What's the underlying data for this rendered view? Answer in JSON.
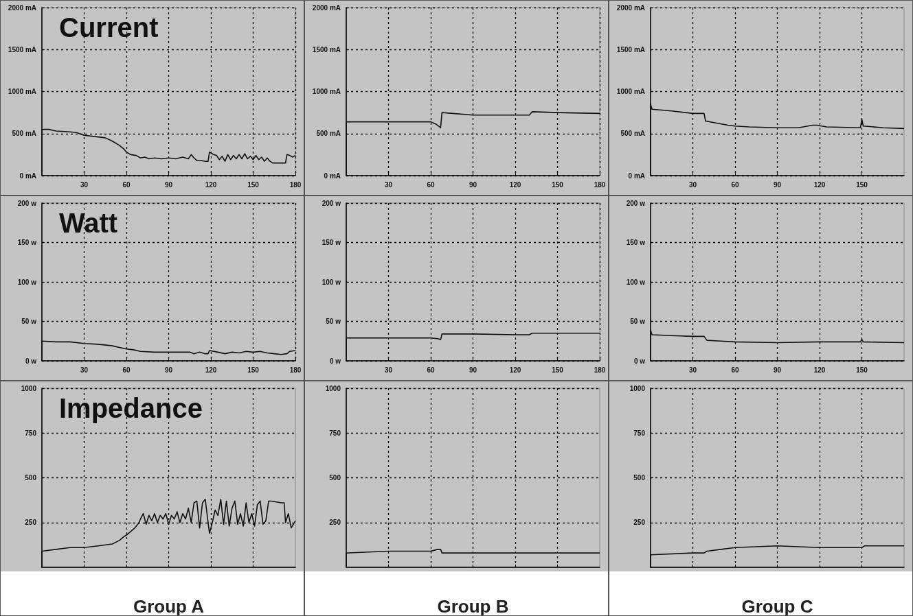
{
  "chart_data": [
    {
      "type": "line",
      "title": "Current",
      "xlim": [
        0,
        180
      ],
      "xticks": [
        30,
        60,
        90,
        120,
        150,
        180
      ],
      "ylim": [
        0,
        2000
      ],
      "yticks": [
        {
          "value": 0,
          "label": "0 mA"
        },
        {
          "value": 500,
          "label": "500 mA"
        },
        {
          "value": 1000,
          "label": "1000 mA"
        },
        {
          "value": 1500,
          "label": "1500 mA"
        },
        {
          "value": 2000,
          "label": "2000 mA"
        }
      ],
      "grid": true,
      "marker": "none",
      "series": [
        {
          "color": "#111111",
          "x": [
            0,
            0,
            5,
            10,
            20,
            25,
            30,
            40,
            45,
            50,
            55,
            58,
            60,
            63,
            67,
            70,
            73,
            76,
            80,
            85,
            90,
            95,
            100,
            104,
            106,
            108,
            110,
            113,
            116,
            118,
            119,
            122,
            124,
            126,
            128,
            130,
            132,
            134,
            136,
            138,
            140,
            142,
            144,
            146,
            148,
            150,
            152,
            154,
            156,
            158,
            160,
            162,
            164,
            170,
            173,
            174,
            176,
            178,
            180
          ],
          "values": [
            0,
            550,
            550,
            530,
            520,
            510,
            480,
            460,
            450,
            410,
            360,
            320,
            280,
            250,
            240,
            210,
            220,
            200,
            210,
            200,
            210,
            200,
            220,
            200,
            250,
            210,
            180,
            180,
            170,
            170,
            280,
            250,
            240,
            190,
            230,
            170,
            250,
            190,
            240,
            200,
            250,
            200,
            260,
            200,
            230,
            190,
            240,
            190,
            220,
            170,
            210,
            170,
            150,
            150,
            150,
            250,
            240,
            220,
            240
          ]
        }
      ]
    },
    {
      "type": "line",
      "xlim": [
        0,
        180
      ],
      "xticks": [
        30,
        60,
        90,
        120,
        150,
        180
      ],
      "ylim": [
        0,
        2000
      ],
      "yticks": [
        {
          "value": 0,
          "label": "0 mA"
        },
        {
          "value": 500,
          "label": "500 mA"
        },
        {
          "value": 1000,
          "label": "1000 mA"
        },
        {
          "value": 1500,
          "label": "1500 mA"
        },
        {
          "value": 2000,
          "label": "2000 mA"
        }
      ],
      "grid": true,
      "marker": "none",
      "series": [
        {
          "color": "#111111",
          "x": [
            0,
            0,
            30,
            60,
            64,
            67,
            68,
            90,
            120,
            130,
            132,
            150,
            180
          ],
          "values": [
            0,
            640,
            640,
            640,
            610,
            570,
            750,
            720,
            720,
            720,
            760,
            750,
            740
          ]
        }
      ]
    },
    {
      "type": "line",
      "xlim": [
        0,
        180
      ],
      "xticks": [
        30,
        60,
        90,
        120,
        150
      ],
      "ylim": [
        0,
        2000
      ],
      "yticks": [
        {
          "value": 0,
          "label": "0 mA"
        },
        {
          "value": 500,
          "label": "500 mA"
        },
        {
          "value": 1000,
          "label": "1000 mA"
        },
        {
          "value": 1500,
          "label": "1500 mA"
        },
        {
          "value": 2000,
          "label": "2000 mA"
        }
      ],
      "grid": true,
      "marker": "none",
      "series": [
        {
          "color": "#111111",
          "x": [
            0,
            0,
            1,
            15,
            30,
            38,
            39,
            45,
            55,
            60,
            70,
            90,
            105,
            115,
            118,
            125,
            149,
            150,
            151,
            165,
            180
          ],
          "values": [
            0,
            850,
            790,
            770,
            740,
            740,
            650,
            630,
            600,
            590,
            580,
            570,
            570,
            600,
            600,
            580,
            570,
            670,
            590,
            570,
            560
          ]
        }
      ]
    },
    {
      "type": "line",
      "title": "Watt",
      "xlim": [
        0,
        180
      ],
      "xticks": [
        30,
        60,
        90,
        120,
        150,
        180
      ],
      "ylim": [
        0,
        200
      ],
      "yticks": [
        {
          "value": 0,
          "label": "0 w"
        },
        {
          "value": 50,
          "label": "50 w"
        },
        {
          "value": 100,
          "label": "100 w"
        },
        {
          "value": 150,
          "label": "150 w"
        },
        {
          "value": 200,
          "label": "200 w"
        }
      ],
      "grid": true,
      "marker": "none",
      "series": [
        {
          "color": "#111111",
          "x": [
            0,
            0,
            10,
            20,
            30,
            40,
            50,
            55,
            60,
            65,
            70,
            80,
            90,
            100,
            105,
            108,
            112,
            116,
            118,
            119,
            125,
            130,
            135,
            140,
            145,
            150,
            155,
            160,
            165,
            170,
            174,
            176,
            180
          ],
          "values": [
            0,
            25,
            24,
            24,
            22,
            21,
            19,
            17,
            15,
            14,
            12,
            11,
            11,
            11,
            11,
            9,
            11,
            9,
            9,
            13,
            11,
            9,
            11,
            10,
            12,
            11,
            12,
            10,
            9,
            8,
            9,
            12,
            13
          ]
        }
      ]
    },
    {
      "type": "line",
      "xlim": [
        0,
        180
      ],
      "xticks": [
        30,
        60,
        90,
        120,
        150,
        180
      ],
      "ylim": [
        0,
        200
      ],
      "yticks": [
        {
          "value": 0,
          "label": "0 w"
        },
        {
          "value": 50,
          "label": "50 w"
        },
        {
          "value": 100,
          "label": "100 w"
        },
        {
          "value": 150,
          "label": "150 w"
        },
        {
          "value": 200,
          "label": "200 w"
        }
      ],
      "grid": true,
      "marker": "none",
      "series": [
        {
          "color": "#111111",
          "x": [
            0,
            0,
            30,
            60,
            65,
            67,
            68,
            90,
            120,
            130,
            132,
            150,
            180
          ],
          "values": [
            0,
            29,
            29,
            29,
            28,
            27,
            34,
            34,
            33,
            33,
            35,
            35,
            35
          ]
        }
      ]
    },
    {
      "type": "line",
      "xlim": [
        0,
        180
      ],
      "xticks": [
        30,
        60,
        90,
        120,
        150
      ],
      "ylim": [
        0,
        200
      ],
      "yticks": [
        {
          "value": 0,
          "label": "0 w"
        },
        {
          "value": 50,
          "label": "50 w"
        },
        {
          "value": 100,
          "label": "100 w"
        },
        {
          "value": 150,
          "label": "150 w"
        },
        {
          "value": 200,
          "label": "200 w"
        }
      ],
      "grid": true,
      "marker": "none",
      "series": [
        {
          "color": "#111111",
          "x": [
            0,
            0,
            1,
            15,
            30,
            38,
            40,
            50,
            60,
            90,
            120,
            149,
            150,
            151,
            180
          ],
          "values": [
            0,
            39,
            33,
            32,
            31,
            31,
            26,
            25,
            24,
            23,
            24,
            24,
            27,
            24,
            23
          ]
        }
      ]
    },
    {
      "type": "line",
      "title": "Impedance",
      "xlabel": "Group A",
      "xlim": [
        0,
        180
      ],
      "xticks": [
        30,
        60,
        90,
        120,
        150
      ],
      "ylim": [
        0,
        1000
      ],
      "yticks": [
        250,
        500,
        750,
        1000
      ],
      "tick_labels": "y",
      "grid": true,
      "marker": "none",
      "series": [
        {
          "color": "#111111",
          "x": [
            0,
            0,
            10,
            20,
            30,
            40,
            50,
            55,
            58,
            60,
            63,
            66,
            69,
            70,
            72,
            74,
            76,
            78,
            80,
            82,
            84,
            86,
            88,
            90,
            92,
            94,
            96,
            98,
            100,
            102,
            104,
            106,
            108,
            110,
            112,
            114,
            116,
            118,
            119,
            121,
            123,
            125,
            127,
            129,
            131,
            133,
            135,
            137,
            139,
            141,
            143,
            145,
            147,
            149,
            151,
            153,
            155,
            157,
            159,
            161,
            163,
            170,
            172,
            173,
            175,
            177,
            180
          ],
          "values": [
            0,
            90,
            100,
            110,
            110,
            120,
            130,
            150,
            170,
            180,
            200,
            220,
            250,
            270,
            300,
            240,
            290,
            260,
            300,
            250,
            290,
            270,
            300,
            240,
            290,
            270,
            310,
            250,
            300,
            270,
            330,
            250,
            360,
            370,
            220,
            360,
            380,
            250,
            190,
            250,
            320,
            290,
            380,
            240,
            370,
            230,
            330,
            370,
            240,
            300,
            230,
            360,
            250,
            300,
            230,
            350,
            370,
            240,
            260,
            370,
            370,
            360,
            360,
            250,
            300,
            220,
            260
          ]
        }
      ]
    },
    {
      "type": "line",
      "xlabel": "Group B",
      "xlim": [
        0,
        180
      ],
      "xticks": [
        30,
        60,
        90,
        120,
        150
      ],
      "ylim": [
        0,
        1000
      ],
      "yticks": [
        250,
        500,
        750,
        1000
      ],
      "tick_labels": "y",
      "grid": true,
      "marker": "none",
      "series": [
        {
          "color": "#111111",
          "x": [
            0,
            0,
            30,
            60,
            65,
            67,
            68,
            90,
            120,
            150,
            180
          ],
          "values": [
            0,
            80,
            90,
            90,
            100,
            100,
            80,
            80,
            80,
            80,
            80
          ]
        }
      ]
    },
    {
      "type": "line",
      "xlabel": "Group C",
      "xlim": [
        0,
        180
      ],
      "xticks": [
        30,
        60,
        90,
        120,
        150
      ],
      "ylim": [
        0,
        1000
      ],
      "yticks": [
        250,
        500,
        750,
        1000
      ],
      "tick_labels": "y",
      "grid": true,
      "marker": "none",
      "series": [
        {
          "color": "#111111",
          "x": [
            0,
            0,
            30,
            38,
            40,
            50,
            60,
            90,
            120,
            150,
            152,
            180
          ],
          "values": [
            0,
            70,
            80,
            80,
            90,
            100,
            110,
            120,
            110,
            110,
            120,
            120
          ]
        }
      ]
    }
  ]
}
